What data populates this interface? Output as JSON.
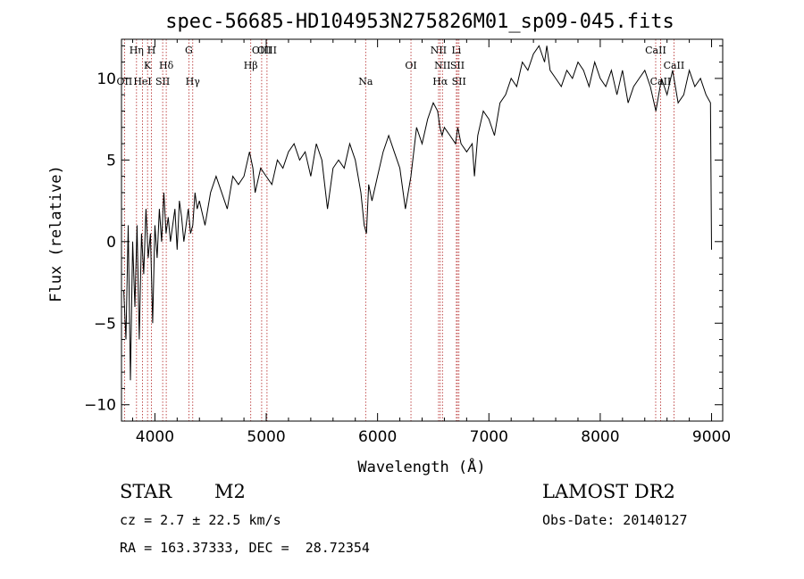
{
  "header": {
    "title": "spec-56685-HD104953N275826M01_sp09-045.fits"
  },
  "info": {
    "class": "STAR",
    "subclass": "M2",
    "survey": "LAMOST DR2",
    "cz": "cz = 2.7 ± 22.5 km/s",
    "obs_date": "Obs-Date: 20140127",
    "coords": "RA = 163.37333, DEC =  28.72354"
  },
  "colors": {
    "line_marker": "#b22222",
    "spectrum": "#000000"
  },
  "chart_data": {
    "type": "line",
    "title": "spec-56685-HD104953N275826M01_sp09-045.fits",
    "xlabel": "Wavelength (Å)",
    "ylabel": "Flux (relative)",
    "xlim": [
      3700,
      9100
    ],
    "ylim": [
      -11,
      12.4
    ],
    "xticks": [
      4000,
      5000,
      6000,
      7000,
      8000,
      9000
    ],
    "yticks": [
      -10,
      -5,
      0,
      5,
      10
    ],
    "grid": false,
    "spectral_lines": [
      {
        "label": "OII",
        "wavelength": 3727,
        "row": 3
      },
      {
        "label": "Hη",
        "wavelength": 3835,
        "row": 1
      },
      {
        "label": "HeI",
        "wavelength": 3889,
        "row": 3
      },
      {
        "label": "K",
        "wavelength": 3934,
        "row": 2
      },
      {
        "label": "H",
        "wavelength": 3969,
        "row": 1
      },
      {
        "label": "SII",
        "wavelength": 4070,
        "row": 3
      },
      {
        "label": "Hδ",
        "wavelength": 4102,
        "row": 2
      },
      {
        "label": "G",
        "wavelength": 4305,
        "row": 1
      },
      {
        "label": "Hγ",
        "wavelength": 4340,
        "row": 3
      },
      {
        "label": "Hβ",
        "wavelength": 4861,
        "row": 2
      },
      {
        "label": "OIII",
        "wavelength": 4959,
        "row": 1
      },
      {
        "label": "OIII",
        "wavelength": 5007,
        "row": 1
      },
      {
        "label": "Na",
        "wavelength": 5893,
        "row": 3
      },
      {
        "label": "OI",
        "wavelength": 6300,
        "row": 2
      },
      {
        "label": "NII",
        "wavelength": 6548,
        "row": 1
      },
      {
        "label": "Hα",
        "wavelength": 6563,
        "row": 3
      },
      {
        "label": "NII",
        "wavelength": 6583,
        "row": 2
      },
      {
        "label": "Li",
        "wavelength": 6708,
        "row": 1
      },
      {
        "label": "SII",
        "wavelength": 6717,
        "row": 2
      },
      {
        "label": "SII",
        "wavelength": 6731,
        "row": 3
      },
      {
        "label": "CaII",
        "wavelength": 8498,
        "row": 1
      },
      {
        "label": "CaII",
        "wavelength": 8542,
        "row": 3
      },
      {
        "label": "CaII",
        "wavelength": 8662,
        "row": 2
      }
    ],
    "series": [
      {
        "x": [
          3720,
          3740,
          3760,
          3780,
          3800,
          3820,
          3840,
          3860,
          3880,
          3900,
          3920,
          3940,
          3960,
          3980,
          4000,
          4020,
          4040,
          4060,
          4080,
          4100,
          4120,
          4140,
          4160,
          4180,
          4200,
          4220,
          4240,
          4260,
          4280,
          4300,
          4320,
          4340,
          4360,
          4380,
          4400,
          4450,
          4500,
          4550,
          4600,
          4650,
          4700,
          4750,
          4800,
          4850,
          4880,
          4900,
          4950,
          5000,
          5050,
          5100,
          5150,
          5200,
          5250,
          5300,
          5350,
          5400,
          5450,
          5500,
          5550,
          5600,
          5650,
          5700,
          5750,
          5800,
          5850,
          5880,
          5900,
          5920,
          5950,
          6000,
          6050,
          6100,
          6150,
          6200,
          6250,
          6300,
          6350,
          6400,
          6450,
          6500,
          6540,
          6560,
          6580,
          6600,
          6650,
          6700,
          6720,
          6750,
          6800,
          6850,
          6870,
          6900,
          6950,
          7000,
          7050,
          7100,
          7150,
          7200,
          7250,
          7300,
          7350,
          7400,
          7450,
          7500,
          7520,
          7550,
          7600,
          7650,
          7700,
          7750,
          7800,
          7850,
          7900,
          7950,
          8000,
          8050,
          8100,
          8150,
          8200,
          8250,
          8300,
          8350,
          8400,
          8450,
          8500,
          8550,
          8600,
          8650,
          8700,
          8750,
          8800,
          8850,
          8900,
          8950,
          8990,
          9000
        ],
        "y": [
          -3,
          -6,
          1,
          -8.5,
          0,
          -4,
          1,
          -6,
          0.5,
          -2,
          2,
          -1,
          0.5,
          -5,
          1,
          -1,
          2,
          0,
          3,
          0.5,
          1.5,
          0,
          1,
          2,
          -0.5,
          2.5,
          1.5,
          0,
          1,
          2,
          0.5,
          1,
          3,
          2,
          2.5,
          1,
          3,
          4,
          3,
          2,
          4,
          3.5,
          4,
          5.5,
          4.5,
          3,
          4.5,
          4,
          3.5,
          5,
          4.5,
          5.5,
          6,
          5,
          5.5,
          4,
          6,
          5,
          2,
          4.5,
          5,
          4.5,
          6,
          5,
          3,
          1,
          0.5,
          3.5,
          2.5,
          4,
          5.5,
          6.5,
          5.5,
          4.5,
          2,
          4,
          7,
          6,
          7.5,
          8.5,
          8,
          7,
          6.5,
          7,
          6.5,
          6,
          7,
          6,
          5.5,
          6,
          4,
          6.5,
          8,
          7.5,
          6.5,
          8.5,
          9,
          10,
          9.5,
          11,
          10.5,
          11.5,
          12,
          11,
          12,
          10.5,
          10,
          9.5,
          10.5,
          10,
          11,
          10.5,
          9.5,
          11,
          10,
          9.5,
          10.5,
          9,
          10.5,
          8.5,
          9.5,
          10,
          10.5,
          9.5,
          8,
          10,
          9,
          10.5,
          8.5,
          9,
          10.5,
          9.5,
          10,
          9,
          8.5,
          -0.5
        ]
      }
    ]
  }
}
